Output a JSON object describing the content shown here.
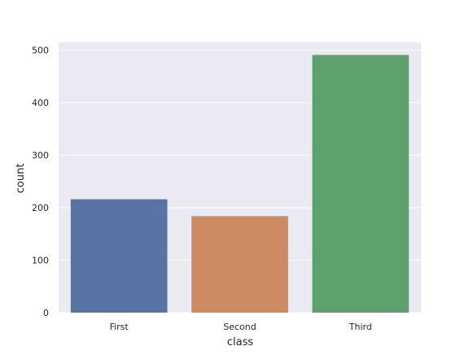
{
  "chart_data": {
    "type": "bar",
    "title": "",
    "xlabel": "class",
    "ylabel": "count",
    "categories": [
      "First",
      "Second",
      "Third"
    ],
    "values": [
      216,
      184,
      491
    ],
    "colors": [
      "#5874a5",
      "#cd8a63",
      "#5fa06f"
    ],
    "ylim": [
      0,
      515
    ],
    "yticks": [
      0,
      100,
      200,
      300,
      400,
      500
    ],
    "grid": true,
    "background": "#eaeaf2",
    "grid_color": "#ffffff"
  }
}
